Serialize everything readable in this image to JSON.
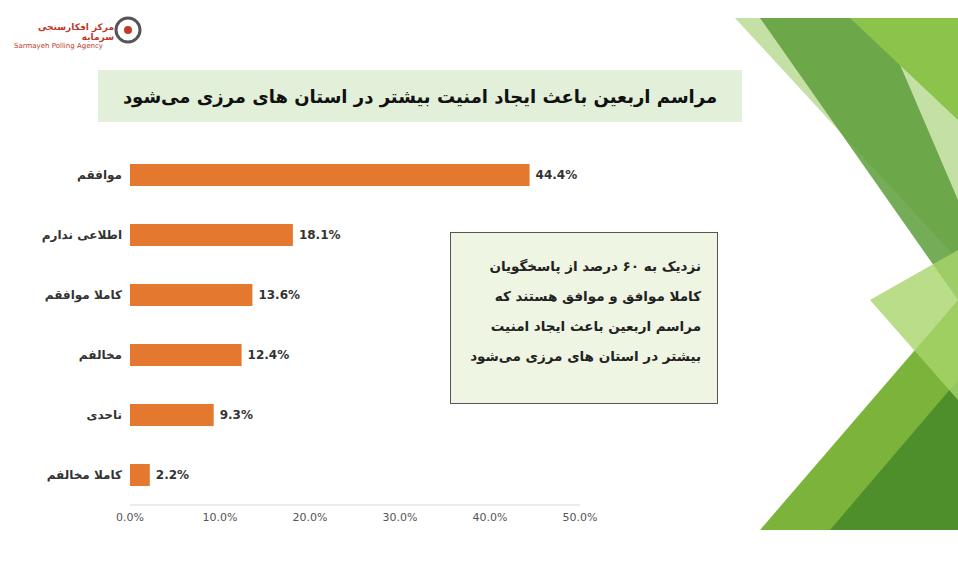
{
  "chart_data": {
    "type": "bar",
    "title": "مراسم اربعین  باعث ایجاد امنیت بیشتر در استان های مرزی می‌شود",
    "orientation": "horizontal",
    "categories": [
      "موافقم",
      "اطلاعی ندارم",
      "کاملا موافقم",
      "مخالفم",
      "ناحدی",
      "کاملا مخالفم"
    ],
    "values": [
      44.4,
      18.1,
      13.6,
      12.4,
      9.3,
      2.2
    ],
    "value_labels": [
      "44.4%",
      "18.1%",
      "13.6%",
      "12.4%",
      "9.3%",
      "2.2%"
    ],
    "data_labels": true,
    "color": "#e4782f",
    "xlim": [
      0,
      50
    ],
    "xticks": [
      {
        "value": 0,
        "label": "0.0%"
      },
      {
        "value": 10,
        "label": "10.0%"
      },
      {
        "value": 20,
        "label": "20.0%"
      },
      {
        "value": 30,
        "label": "30.0%"
      },
      {
        "value": 40,
        "label": "40.0%"
      },
      {
        "value": 50,
        "label": "50.0%"
      }
    ],
    "grid": false,
    "annotations": [
      "نزدیک به ۶۰ درصد از پاسخگویان کاملا موافق و موافق هستند که مراسم اربعین باعث ایجاد امنیت بیشتر در استان های مرزی می‌شود",
      "مرکز افکارسنجی سرمایه",
      "Sarmayeh Polling Agency"
    ]
  }
}
